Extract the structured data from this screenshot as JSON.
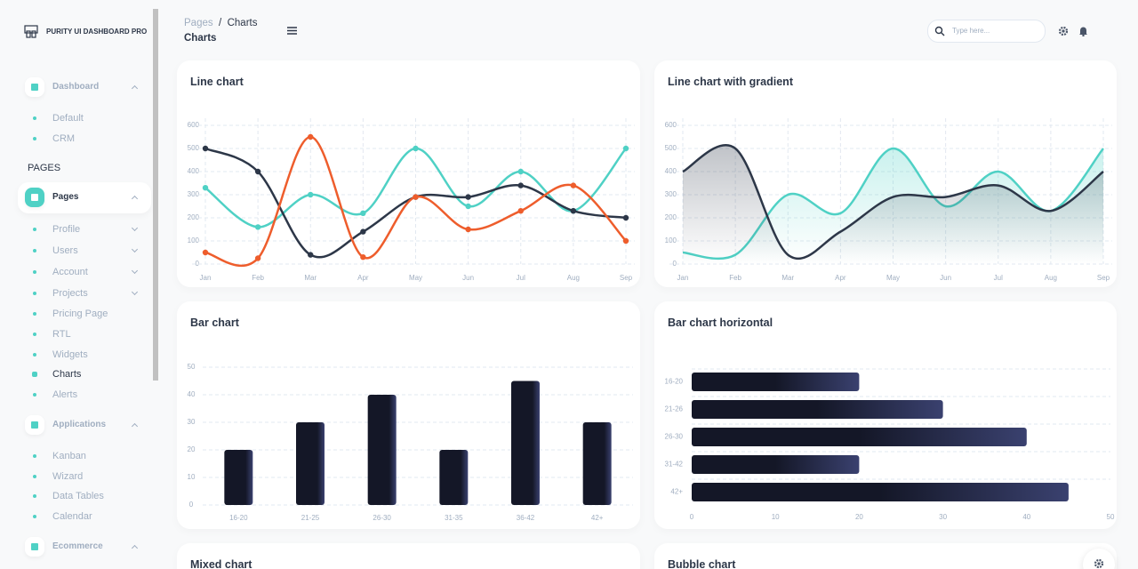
{
  "sidebar": {
    "brand": "PURITY UI DASHBOARD PRO",
    "dashboard": {
      "label": "Dashboard",
      "items": [
        "Default",
        "CRM"
      ]
    },
    "section_heading": "PAGES",
    "pages": {
      "label": "Pages",
      "items": [
        "Profile",
        "Users",
        "Account",
        "Projects",
        "Pricing Page",
        "RTL",
        "Widgets",
        "Charts",
        "Alerts"
      ]
    },
    "applications": {
      "label": "Applications",
      "items": [
        "Kanban",
        "Wizard",
        "Data Tables",
        "Calendar"
      ]
    },
    "ecommerce": {
      "label": "Ecommerce"
    }
  },
  "header": {
    "breadcrumb": [
      "Pages",
      "Charts"
    ],
    "separator": "/",
    "title": "Charts",
    "search_placeholder": "Type here..."
  },
  "chart_data": [
    {
      "type": "line",
      "title": "Line chart",
      "categories": [
        "Jan",
        "Feb",
        "Mar",
        "Apr",
        "May",
        "Jun",
        "Jul",
        "Aug",
        "Sep"
      ],
      "series": [
        {
          "color": "#4fd1c5",
          "values": [
            330,
            160,
            300,
            220,
            500,
            250,
            400,
            230,
            500
          ]
        },
        {
          "color": "#2d3748",
          "values": [
            500,
            400,
            40,
            140,
            290,
            290,
            340,
            230,
            200
          ]
        },
        {
          "color": "#ee5d2c",
          "values": [
            50,
            25,
            550,
            30,
            290,
            150,
            230,
            340,
            100
          ]
        }
      ],
      "ylim": [
        0,
        600
      ],
      "yticks": [
        0,
        100,
        200,
        300,
        400,
        500,
        600
      ],
      "grid": true,
      "markers": true
    },
    {
      "type": "area",
      "title": "Line chart with gradient",
      "categories": [
        "Jan",
        "Feb",
        "Mar",
        "Apr",
        "May",
        "Jun",
        "Jul",
        "Aug",
        "Sep"
      ],
      "series": [
        {
          "color": "#4fd1c5",
          "values": [
            50,
            40,
            300,
            220,
            500,
            250,
            400,
            230,
            500
          ]
        },
        {
          "color": "#2d3748",
          "values": [
            400,
            500,
            40,
            140,
            290,
            290,
            340,
            230,
            400
          ]
        }
      ],
      "ylim": [
        0,
        600
      ],
      "yticks": [
        0,
        100,
        200,
        300,
        400,
        500,
        600
      ],
      "grid": true,
      "markers": false
    },
    {
      "type": "bar",
      "title": "Bar chart",
      "categories": [
        "16-20",
        "21-25",
        "26-30",
        "31-35",
        "36-42",
        "42+"
      ],
      "values": [
        20,
        30,
        40,
        20,
        45,
        30
      ],
      "color": "#141727",
      "ylim": [
        0,
        50
      ],
      "yticks": [
        0,
        10,
        20,
        30,
        40,
        50
      ],
      "grid": true
    },
    {
      "type": "hbar",
      "title": "Bar chart horizontal",
      "categories": [
        "16-20",
        "21-26",
        "26-30",
        "31-42",
        "42+"
      ],
      "values": [
        20,
        30,
        40,
        20,
        45
      ],
      "color": "#141727",
      "xlim": [
        0,
        50
      ],
      "xticks": [
        0,
        10,
        20,
        30,
        40,
        50
      ],
      "grid": true
    },
    {
      "type": "mixed",
      "title": "Mixed chart"
    },
    {
      "type": "bubble",
      "title": "Bubble chart"
    }
  ]
}
